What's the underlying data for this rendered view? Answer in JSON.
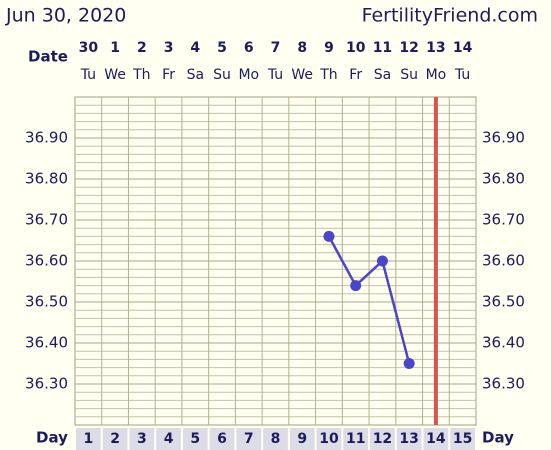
{
  "chart_data": {
    "type": "line",
    "date_title": "Jun 30, 2020",
    "site": "FertilityFriend.com",
    "date_label": "Date",
    "day_label": "Day",
    "x": [
      1,
      2,
      3,
      4,
      5,
      6,
      7,
      8,
      9,
      10,
      11,
      12,
      13,
      14,
      15
    ],
    "dates": [
      30,
      1,
      2,
      3,
      4,
      5,
      6,
      7,
      8,
      9,
      10,
      11,
      12,
      13,
      14
    ],
    "weekdays": [
      "Tu",
      "We",
      "Th",
      "Fr",
      "Sa",
      "Su",
      "Mo",
      "Tu",
      "We",
      "Th",
      "Fr",
      "Sa",
      "Su",
      "Mo",
      "Tu"
    ],
    "series": [
      {
        "color": "#4a46c8",
        "values": [
          null,
          null,
          null,
          null,
          null,
          null,
          null,
          null,
          null,
          36.66,
          36.54,
          36.6,
          36.35,
          null,
          null
        ]
      }
    ],
    "ylim": [
      36.2,
      37.0
    ],
    "yticks": [
      {
        "value": 36.3,
        "label": "36.30"
      },
      {
        "value": 36.4,
        "label": "36.40"
      },
      {
        "value": 36.5,
        "label": "36.50"
      },
      {
        "value": 36.6,
        "label": "36.60"
      },
      {
        "value": 36.7,
        "label": "36.70"
      },
      {
        "value": 36.8,
        "label": "36.80"
      },
      {
        "value": 36.9,
        "label": "36.90"
      }
    ],
    "minor_step": 0.02,
    "grid": true,
    "current_day": 14,
    "current_day_color": "#d9534f"
  }
}
